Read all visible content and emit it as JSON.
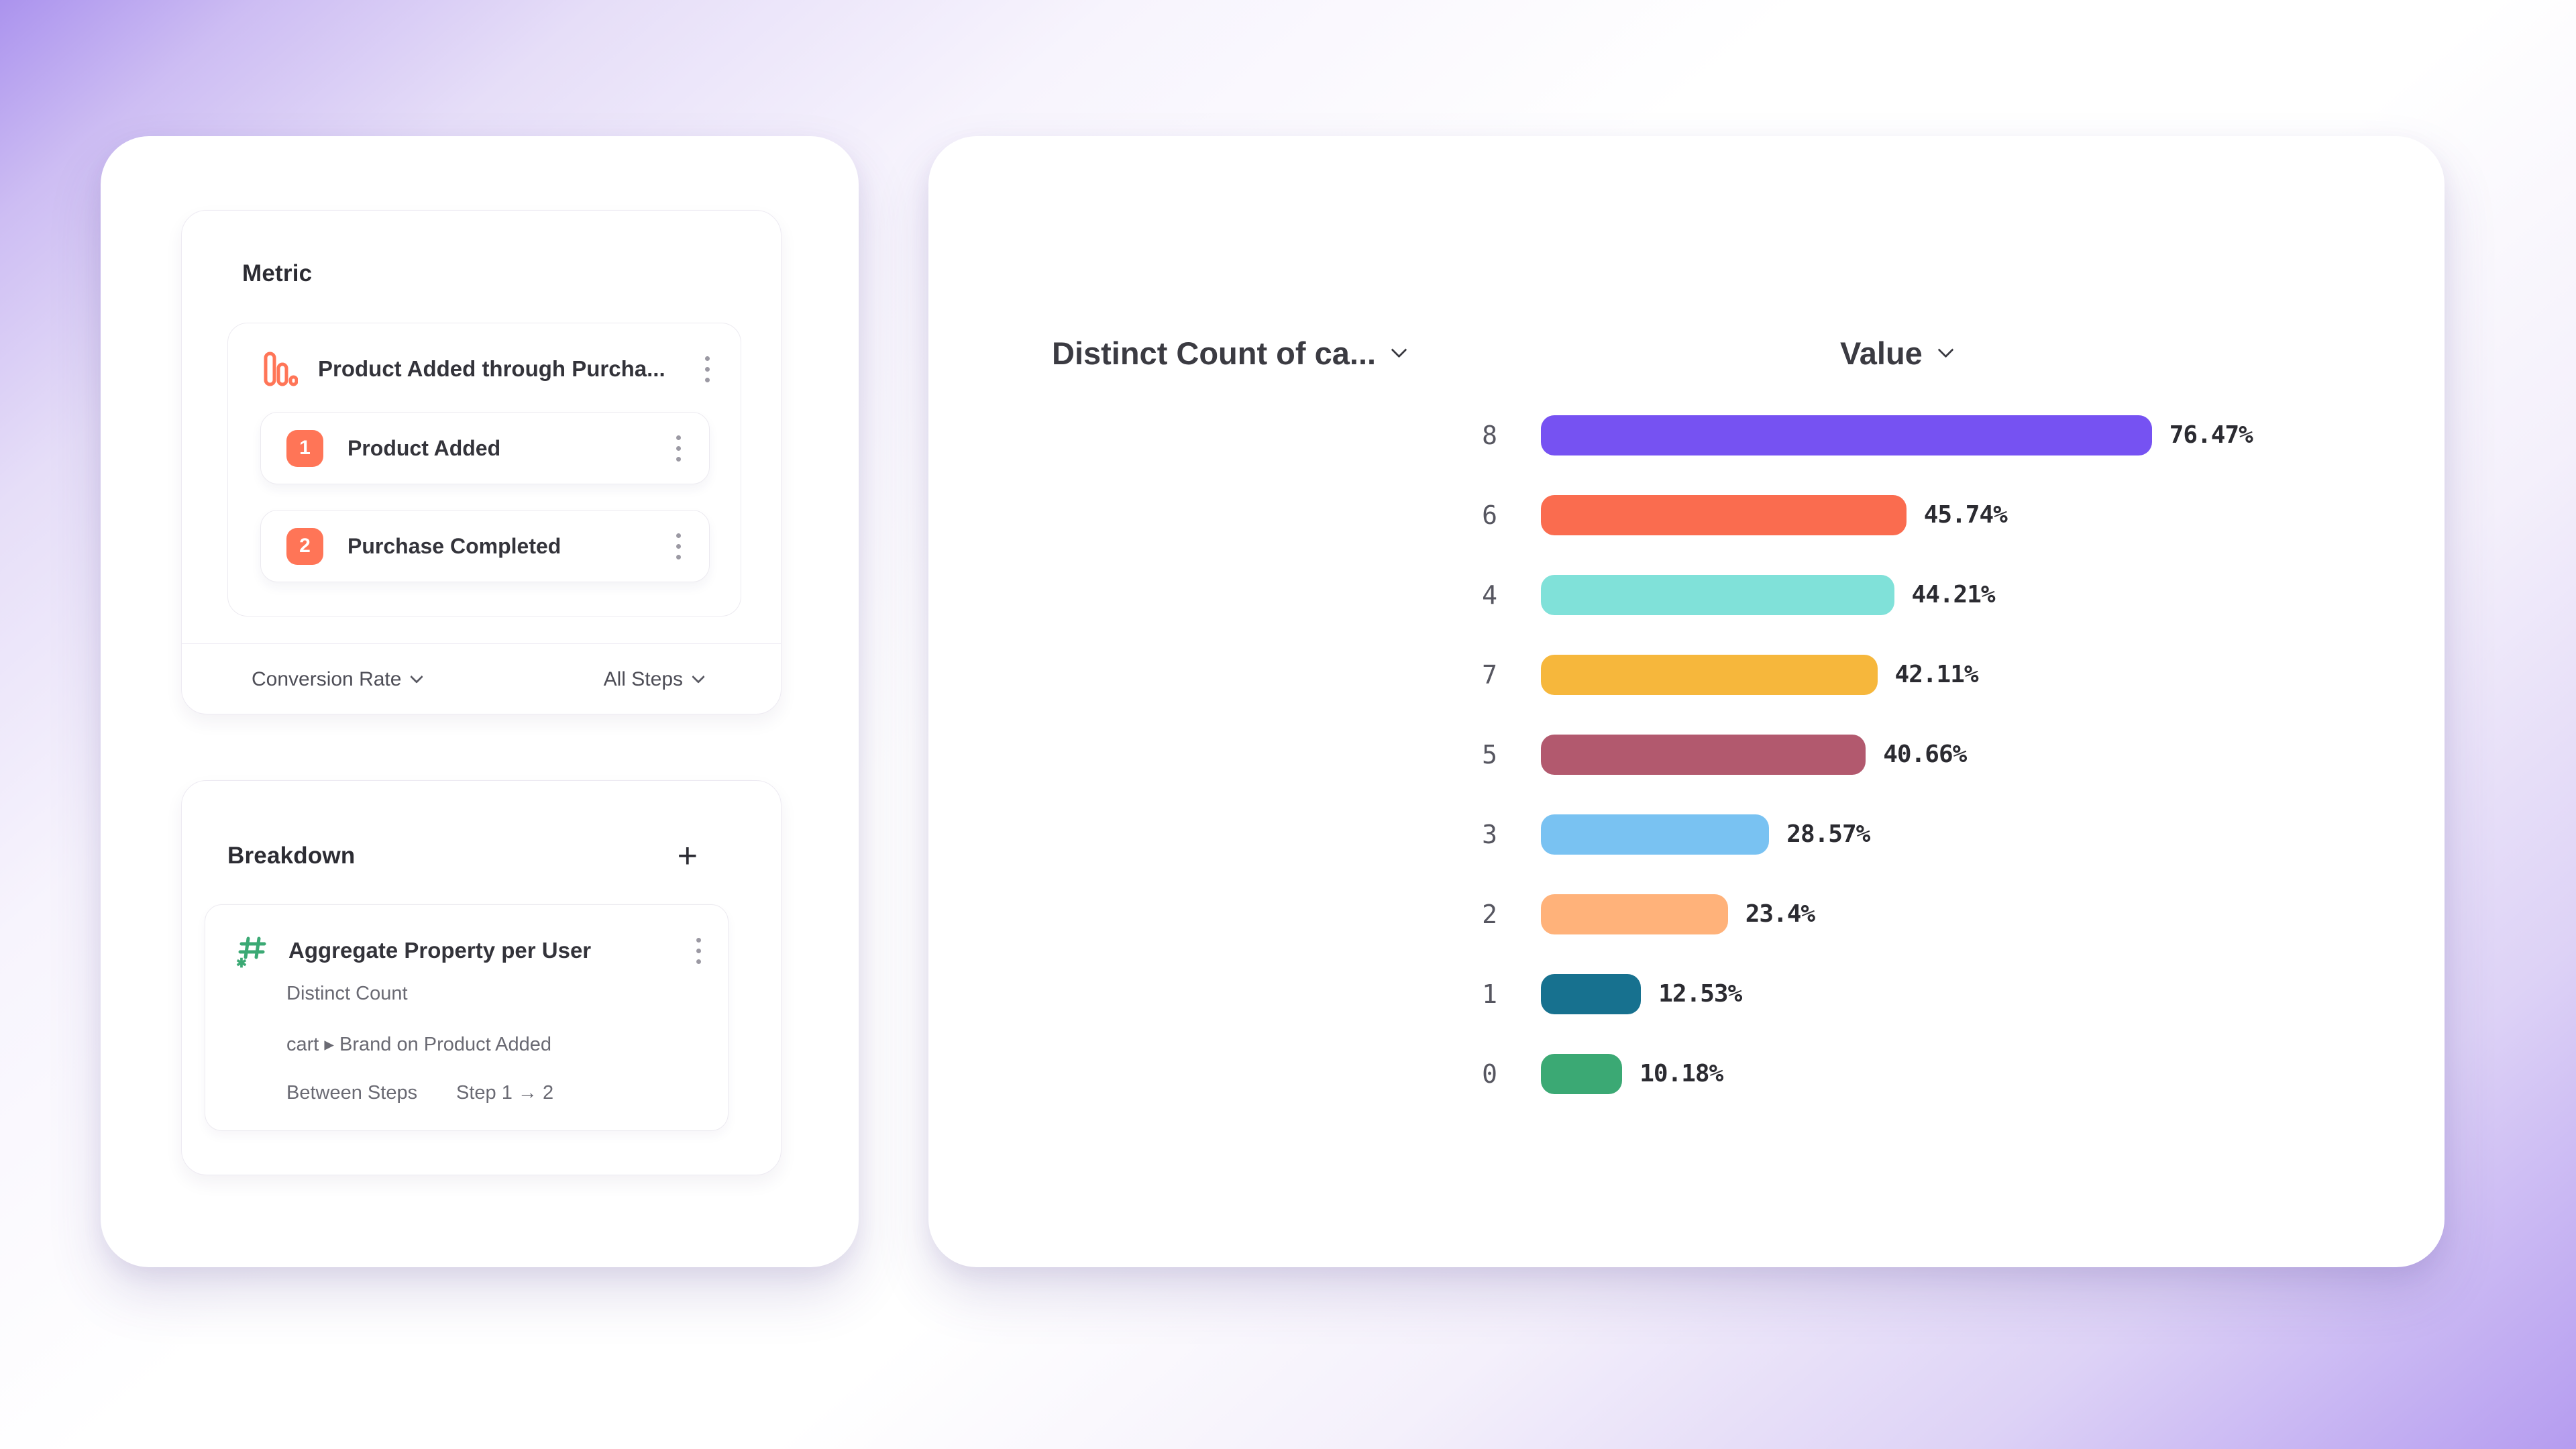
{
  "metric_panel": {
    "title": "Metric",
    "funnel": {
      "name": "Product Added through Purcha...",
      "steps": [
        {
          "number": "1",
          "label": "Product Added"
        },
        {
          "number": "2",
          "label": "Purchase Completed"
        }
      ]
    },
    "footer": {
      "left_dropdown": "Conversion Rate",
      "right_dropdown": "All Steps"
    }
  },
  "breakdown_panel": {
    "title": "Breakdown",
    "add_button": "+",
    "item": {
      "title": "Aggregate Property per User",
      "aggregation": "Distinct Count",
      "property": "cart ▸ Brand on Product Added",
      "scope_label": "Between Steps",
      "scope_value": "Step 1 → 2"
    }
  },
  "chart": {
    "left_header": "Distinct Count of ca...",
    "right_header": "Value"
  },
  "chart_data": {
    "type": "bar",
    "orientation": "horizontal",
    "title": "Distinct Count of ca...",
    "value_column": "Value",
    "categories": [
      "8",
      "6",
      "4",
      "7",
      "5",
      "3",
      "2",
      "1",
      "0"
    ],
    "values": [
      76.47,
      45.74,
      44.21,
      42.11,
      40.66,
      28.57,
      23.4,
      12.53,
      10.18
    ],
    "value_labels": [
      "76.47%",
      "45.74%",
      "44.21%",
      "42.11%",
      "40.66%",
      "28.57%",
      "23.4%",
      "12.53%",
      "10.18%"
    ],
    "bar_colors": [
      "#7652F2",
      "#FA6C4F",
      "#80E1D9",
      "#F6B73C",
      "#B2596E",
      "#79C2F2",
      "#FFB27A",
      "#17718F",
      "#3BA974"
    ],
    "xlim": [
      0,
      100
    ],
    "grid": false,
    "legend": false,
    "accent_colors": {
      "step_badge": "#FF7557",
      "funnel_icon": "#FF7557",
      "breakdown_icon": "#3BA974"
    }
  }
}
